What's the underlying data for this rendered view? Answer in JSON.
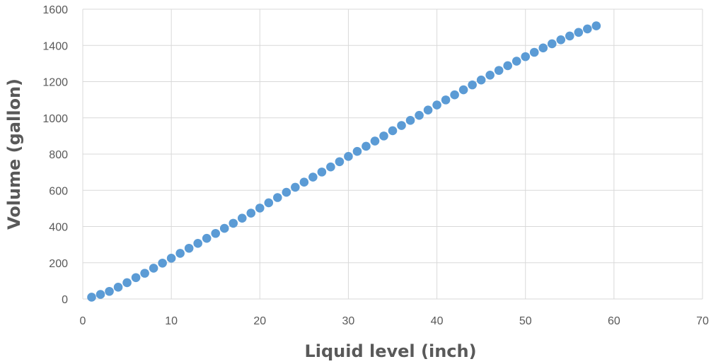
{
  "chart_data": {
    "type": "scatter",
    "title": "",
    "xlabel": "Liquid  level (inch)",
    "ylabel": "Volume (gallon)",
    "xlim": [
      0,
      70
    ],
    "ylim": [
      0,
      1600
    ],
    "xticks": [
      0,
      10,
      20,
      30,
      40,
      50,
      60,
      70
    ],
    "yticks": [
      0,
      200,
      400,
      600,
      800,
      1000,
      1200,
      1400,
      1600
    ],
    "grid": true,
    "legend": "none",
    "marker_color": "#5B9BD5",
    "grid_color": "#D9D9D9",
    "series": [
      {
        "x": [
          1,
          2,
          3,
          4,
          5,
          6,
          7,
          8,
          9,
          10,
          11,
          12,
          13,
          14,
          15,
          16,
          17,
          18,
          19,
          20,
          21,
          22,
          23,
          24,
          25,
          26,
          27,
          28,
          29,
          30,
          31,
          32,
          33,
          34,
          35,
          36,
          37,
          38,
          39,
          40,
          41,
          42,
          43,
          44,
          45,
          46,
          47,
          48,
          49,
          50,
          51,
          52,
          53,
          54,
          55,
          56,
          57,
          58
        ],
        "y": [
          10,
          25,
          42,
          65,
          90,
          118,
          142,
          170,
          198,
          225,
          252,
          280,
          307,
          335,
          362,
          390,
          418,
          446,
          474,
          502,
          531,
          560,
          589,
          617,
          645,
          673,
          701,
          729,
          758,
          787,
          815,
          843,
          872,
          900,
          929,
          958,
          986,
          1014,
          1043,
          1071,
          1099,
          1127,
          1155,
          1182,
          1209,
          1236,
          1262,
          1288,
          1313,
          1338,
          1362,
          1386,
          1409,
          1431,
          1452,
          1472,
          1491,
          1508
        ]
      }
    ]
  }
}
